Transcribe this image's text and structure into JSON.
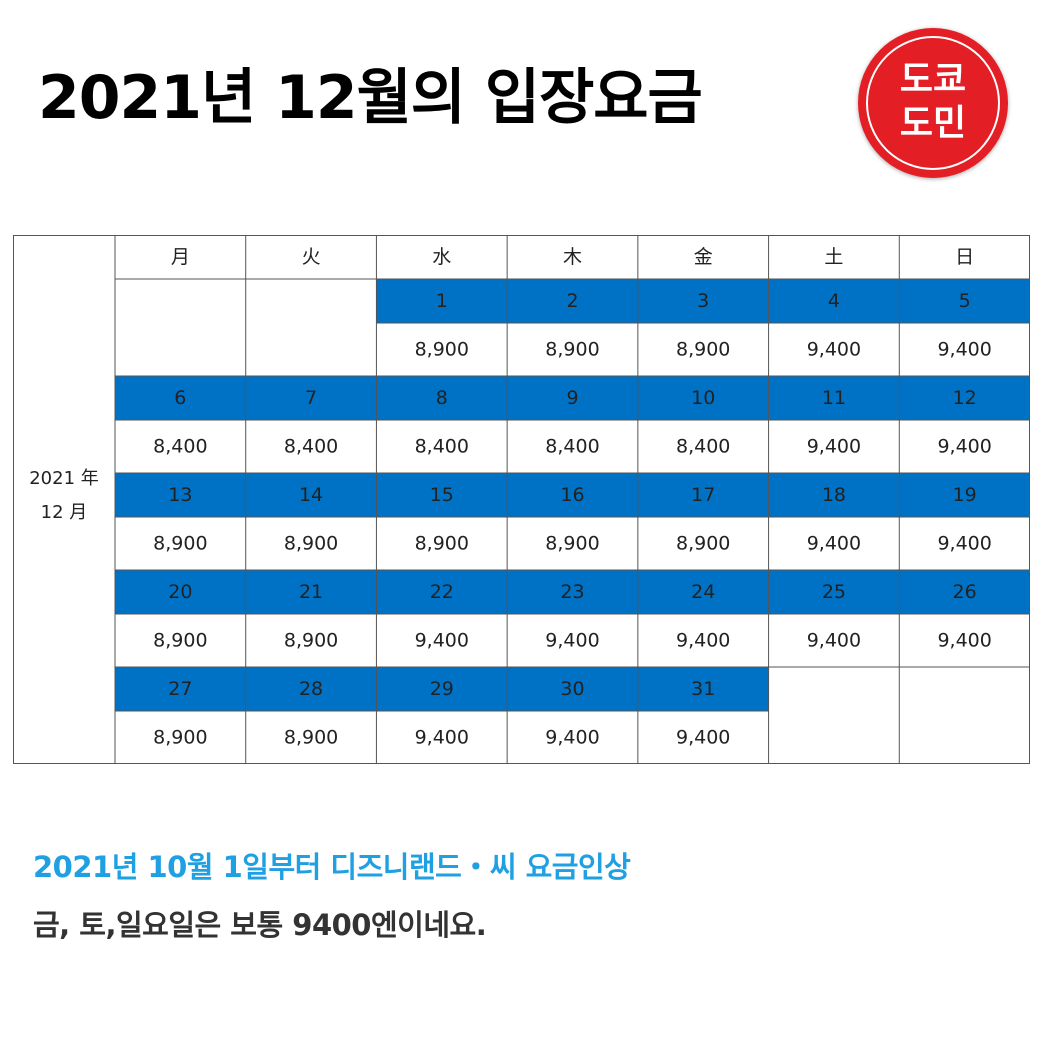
{
  "title": "2021년 12월의 입장요금",
  "logo": {
    "line1": "도쿄",
    "line2": "도민",
    "color": "#e31e25"
  },
  "calendar": {
    "year_label": "2021 年",
    "month_label": "12 月",
    "weekdays": [
      "月",
      "火",
      "水",
      "木",
      "金",
      "土",
      "日"
    ],
    "header_color": "#0072c6",
    "weeks": [
      {
        "days": [
          null,
          null,
          "1",
          "2",
          "3",
          "4",
          "5"
        ],
        "prices": [
          null,
          null,
          "8,900",
          "8,900",
          "8,900",
          "9,400",
          "9,400"
        ]
      },
      {
        "days": [
          "6",
          "7",
          "8",
          "9",
          "10",
          "11",
          "12"
        ],
        "prices": [
          "8,400",
          "8,400",
          "8,400",
          "8,400",
          "8,400",
          "9,400",
          "9,400"
        ]
      },
      {
        "days": [
          "13",
          "14",
          "15",
          "16",
          "17",
          "18",
          "19"
        ],
        "prices": [
          "8,900",
          "8,900",
          "8,900",
          "8,900",
          "8,900",
          "9,400",
          "9,400"
        ]
      },
      {
        "days": [
          "20",
          "21",
          "22",
          "23",
          "24",
          "25",
          "26"
        ],
        "prices": [
          "8,900",
          "8,900",
          "9,400",
          "9,400",
          "9,400",
          "9,400",
          "9,400"
        ]
      },
      {
        "days": [
          "27",
          "28",
          "29",
          "30",
          "31",
          null,
          null
        ],
        "prices": [
          "8,900",
          "8,900",
          "9,400",
          "9,400",
          "9,400",
          null,
          null
        ]
      }
    ]
  },
  "captions": {
    "line1": "2021년 10월 1일부터 디즈니랜드・씨 요금인상",
    "line1_color": "#1fa0e3",
    "line2": "금, 토,일요일은 보통 9400엔이네요."
  }
}
